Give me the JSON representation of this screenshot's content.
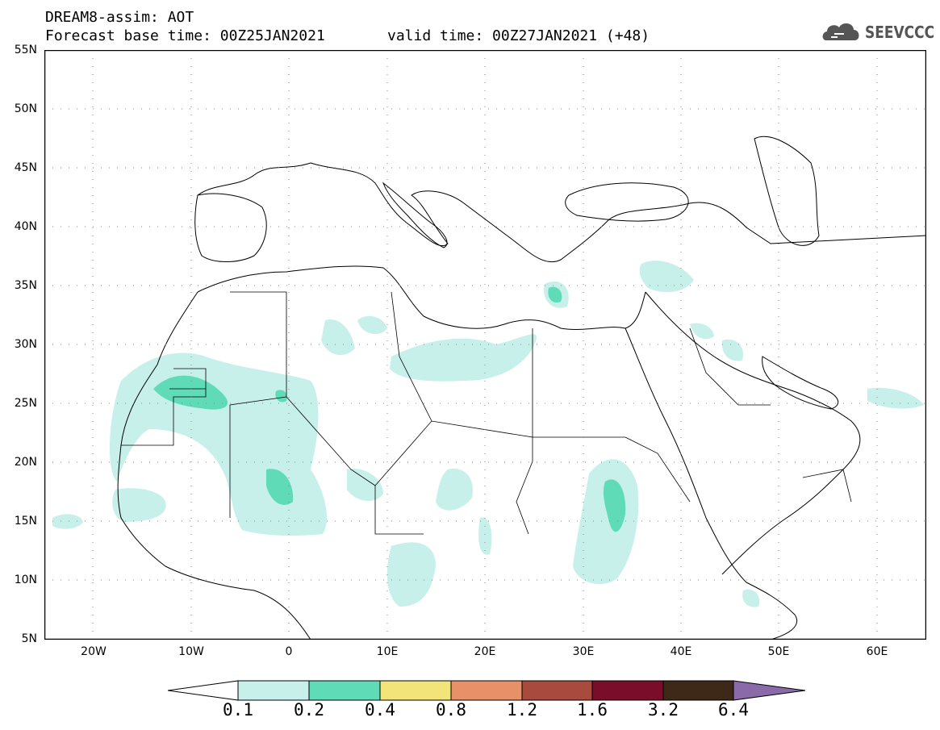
{
  "header": {
    "line1": "DREAM8-assim: AOT",
    "line2": "Forecast base time: 00Z25JAN2021",
    "line3": "valid time: 00Z27JAN2021 (+48)"
  },
  "logo": {
    "text": "SEEVCCC",
    "icon": "cloud-icon"
  },
  "axes": {
    "lat_labels": [
      "55N",
      "50N",
      "45N",
      "40N",
      "35N",
      "30N",
      "25N",
      "20N",
      "15N",
      "10N",
      "5N"
    ],
    "lon_labels": [
      "20W",
      "10W",
      "0",
      "10E",
      "20E",
      "30E",
      "40E",
      "50E",
      "60E"
    ],
    "lat_range": [
      5,
      55
    ],
    "lon_range": [
      -25,
      65
    ],
    "grid": "dotted"
  },
  "colorbar": {
    "levels": [
      "0.1",
      "0.2",
      "0.4",
      "0.8",
      "1.2",
      "1.6",
      "3.2",
      "6.4"
    ],
    "colors": [
      "#ffffff",
      "#c8f0ea",
      "#5fdbb8",
      "#f3e47a",
      "#e89068",
      "#a84a3e",
      "#7a0e2a",
      "#3e2818",
      "#8a6aa8"
    ]
  },
  "colors": {
    "level1": "#c8f0ea",
    "level2": "#5fdbb8",
    "coast": "#000000",
    "grid": "#888888"
  }
}
